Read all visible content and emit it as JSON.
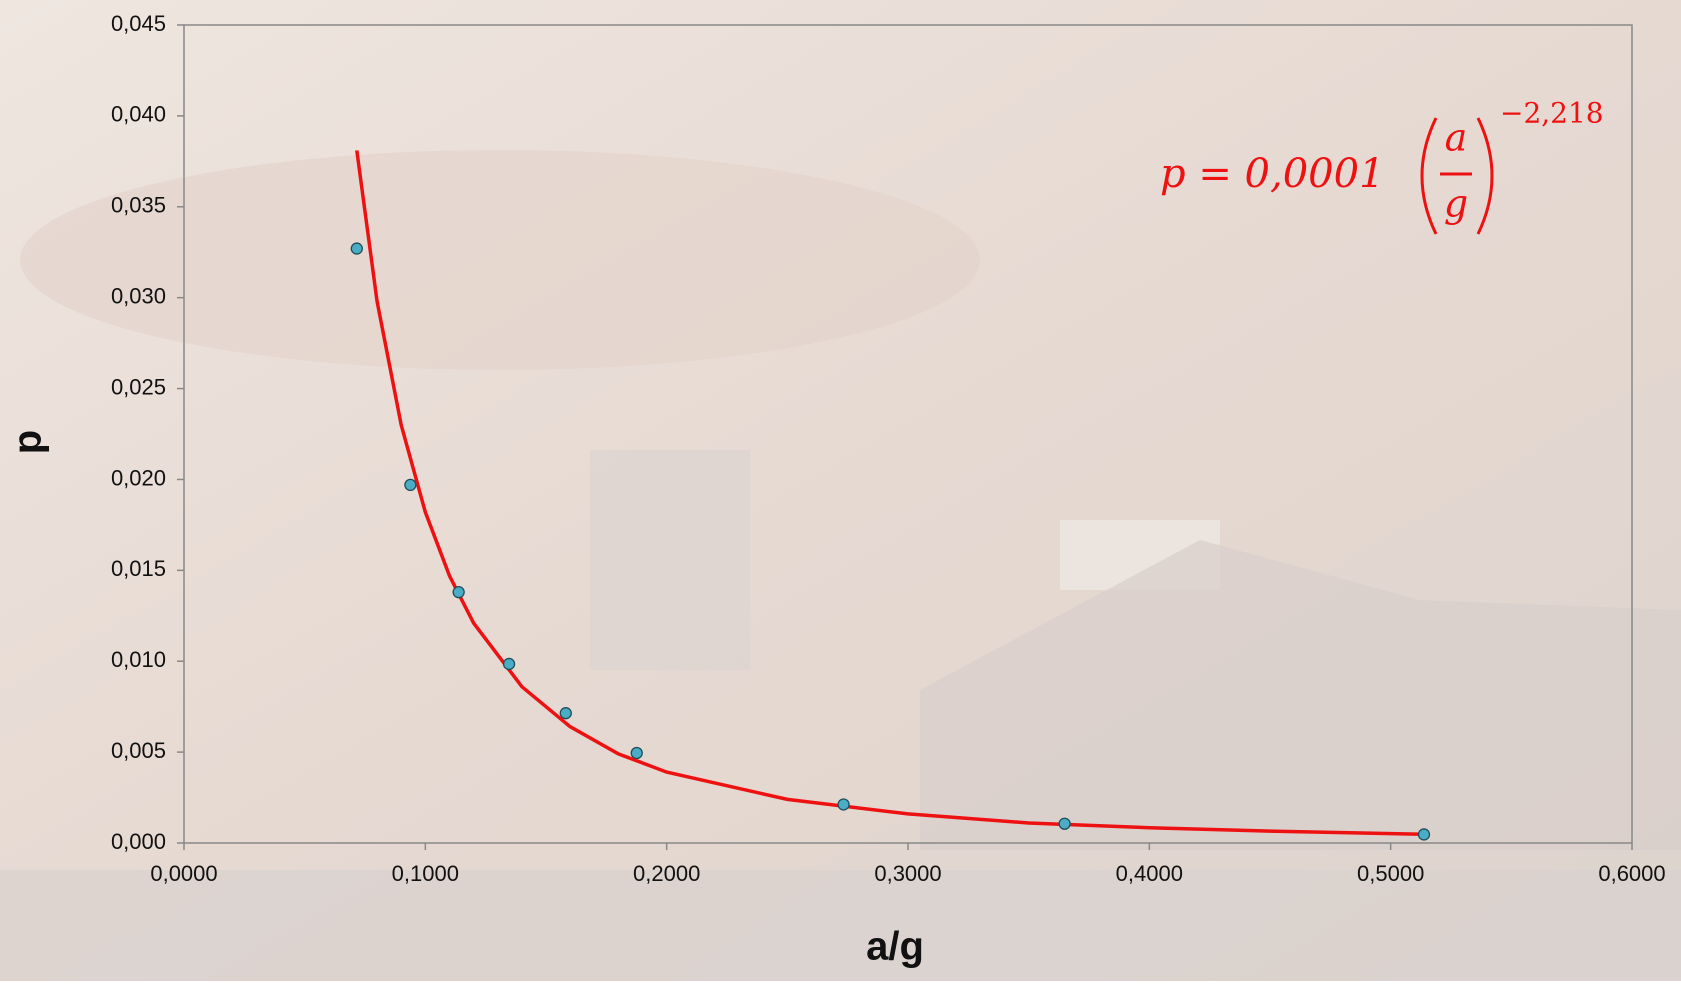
{
  "chart_data": {
    "type": "scatter",
    "x_label": "a/g",
    "y_label": "p",
    "xlim": [
      0,
      0.6
    ],
    "ylim": [
      0,
      0.045
    ],
    "xticks": [
      {
        "value": 0,
        "label": "0,0000"
      },
      {
        "value": 0.1,
        "label": "0,1000"
      },
      {
        "value": 0.2,
        "label": "0,2000"
      },
      {
        "value": 0.3,
        "label": "0,3000"
      },
      {
        "value": 0.4,
        "label": "0,4000"
      },
      {
        "value": 0.5,
        "label": "0,5000"
      },
      {
        "value": 0.6,
        "label": "0,6000"
      }
    ],
    "yticks": [
      {
        "value": 0,
        "label": "0,000"
      },
      {
        "value": 0.005,
        "label": "0,005"
      },
      {
        "value": 0.01,
        "label": "0,010"
      },
      {
        "value": 0.015,
        "label": "0,015"
      },
      {
        "value": 0.02,
        "label": "0,020"
      },
      {
        "value": 0.025,
        "label": "0,025"
      },
      {
        "value": 0.03,
        "label": "0,030"
      },
      {
        "value": 0.035,
        "label": "0,035"
      },
      {
        "value": 0.04,
        "label": "0,040"
      },
      {
        "value": 0.045,
        "label": "0,045"
      }
    ],
    "series": [
      {
        "type": "scatter",
        "color": "#4bacc6",
        "x": [
          0.0716,
          0.0938,
          0.1138,
          0.1347,
          0.1582,
          0.1876,
          0.2733,
          0.3649,
          0.5138
        ],
        "values": [
          0.0327,
          0.0197,
          0.0138,
          0.00985,
          0.00714,
          0.00495,
          0.00212,
          0.00106,
          0.00047
        ]
      },
      {
        "type": "line",
        "color": "#ee1111",
        "x": [
          0.0716,
          0.08,
          0.09,
          0.1,
          0.11,
          0.12,
          0.14,
          0.16,
          0.18,
          0.2,
          0.25,
          0.3,
          0.35,
          0.4,
          0.45,
          0.5138
        ],
        "values": [
          0.0381,
          0.0298,
          0.023,
          0.0182,
          0.0147,
          0.0121,
          0.0086,
          0.0064,
          0.0049,
          0.0039,
          0.0024,
          0.0016,
          0.0011,
          0.00084,
          0.00065,
          0.00048
        ]
      }
    ],
    "annotation": {
      "lhs": "p = 0,0001",
      "numerator": "a",
      "denominator": "g",
      "exponent": "−2,218"
    }
  }
}
